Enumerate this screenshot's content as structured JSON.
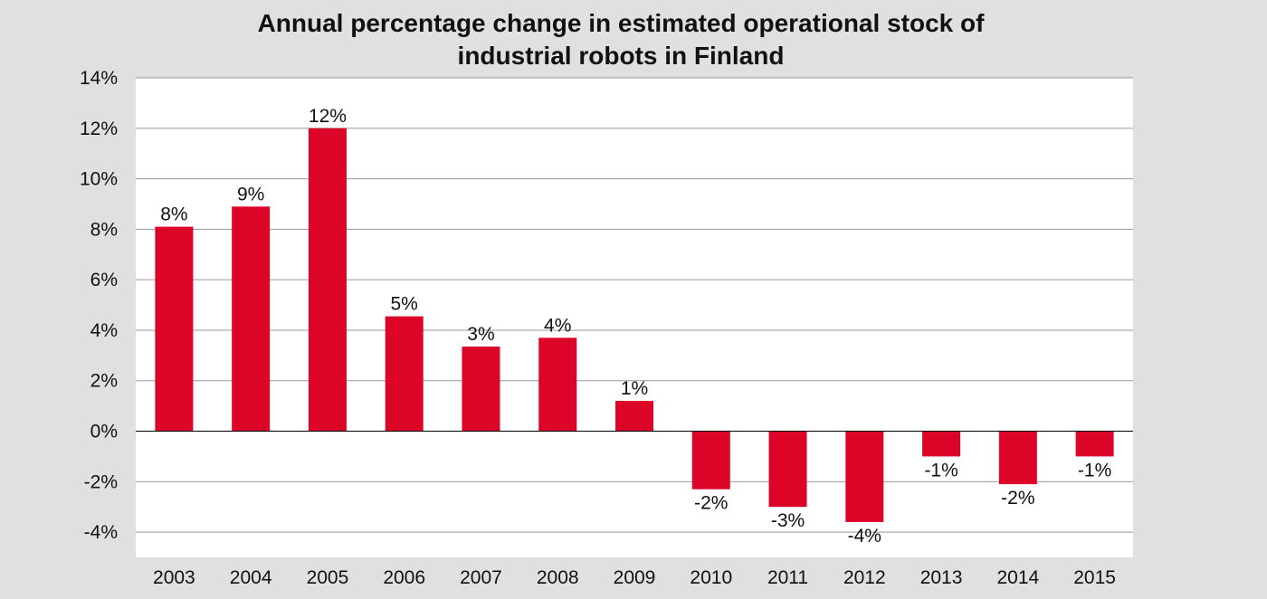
{
  "chart_data": {
    "type": "bar",
    "title_lines": [
      "Annual percentage change in estimated operational stock of",
      "industrial robots in Finland"
    ],
    "categories": [
      "2003",
      "2004",
      "2005",
      "2006",
      "2007",
      "2008",
      "2009",
      "2010",
      "2011",
      "2012",
      "2013",
      "2014",
      "2015"
    ],
    "values": [
      8.1,
      8.9,
      12.0,
      4.55,
      3.35,
      3.7,
      1.2,
      -2.3,
      -3.0,
      -3.6,
      -1.0,
      -2.1,
      -1.0
    ],
    "data_labels": [
      "8%",
      "9%",
      "12%",
      "5%",
      "3%",
      "4%",
      "1%",
      "-2%",
      "-3%",
      "-4%",
      "-1%",
      "-2%",
      "-1%"
    ],
    "y_ticks": [
      14,
      12,
      10,
      8,
      6,
      4,
      2,
      0,
      -2,
      -4
    ],
    "y_tick_labels": [
      "14%",
      "12%",
      "10%",
      "8%",
      "6%",
      "4%",
      "2%",
      "0%",
      "-2%",
      "-4%"
    ],
    "ylim": [
      -5,
      14
    ],
    "grid": true,
    "legend": "none",
    "bar_color": "#dc0528",
    "plot_background": "#ffffff",
    "page_background": "#e0e0e0",
    "gridline_color": "#9a9a9a"
  }
}
